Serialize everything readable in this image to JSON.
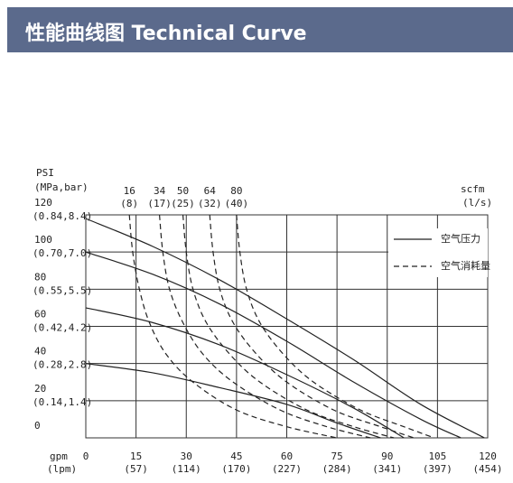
{
  "chart_data": {
    "type": "line",
    "title": "性能曲线图 Technical Curve",
    "y_label": "PSI",
    "y_label_secondary": "(MPa,bar)",
    "x_label": "gpm",
    "x_label_secondary": "(lpm)",
    "curve_label": "scfm",
    "curve_label_secondary": "(l/s)",
    "xlim": [
      0,
      120
    ],
    "ylim": [
      0,
      120
    ],
    "xticks": [
      0,
      15,
      30,
      45,
      60,
      75,
      90,
      105,
      120
    ],
    "xtick_secondary_labels": [
      null,
      "(57)",
      "(114)",
      "(170)",
      "(227)",
      "(284)",
      "(341)",
      "(397)",
      "(454)"
    ],
    "yticks": [
      0,
      20,
      40,
      60,
      80,
      100,
      120
    ],
    "ytick_secondary_labels": [
      null,
      "(0.14,1.4)",
      "(0.28,2.8)",
      "(0.42,4.2)",
      "(0.55,5.5)",
      "(0.70,7.0)",
      "(0.84,8.4)"
    ],
    "grid": true,
    "legend": [
      {
        "label": "空气压力",
        "style": "solid"
      },
      {
        "label": "空气消耗量",
        "style": "dashed"
      }
    ],
    "color": "#222222",
    "series": [
      {
        "style": "solid",
        "x": [
          0,
          20,
          40,
          60,
          80,
          100,
          119
        ],
        "values": [
          118,
          103,
          85,
          64,
          42,
          18,
          0
        ]
      },
      {
        "style": "solid",
        "x": [
          0,
          20,
          40,
          60,
          80,
          100,
          112
        ],
        "values": [
          100,
          88,
          72,
          52,
          30,
          10,
          0
        ]
      },
      {
        "style": "solid",
        "x": [
          0,
          20,
          40,
          60,
          80,
          95
        ],
        "values": [
          70,
          62,
          50,
          34,
          16,
          0
        ]
      },
      {
        "style": "solid",
        "x": [
          0,
          20,
          40,
          60,
          75,
          88
        ],
        "values": [
          40,
          35,
          27,
          18,
          8,
          0
        ]
      },
      {
        "style": "dashed",
        "name": "16",
        "sublabel": "(8)",
        "x": [
          13,
          14,
          16,
          19,
          24,
          32,
          45,
          60,
          75
        ],
        "values": [
          120,
          100,
          80,
          62,
          45,
          30,
          15,
          6,
          0
        ]
      },
      {
        "style": "dashed",
        "name": "34",
        "sublabel": "(17)",
        "x": [
          22,
          23,
          25,
          29,
          35,
          44,
          58,
          72,
          85
        ],
        "values": [
          120,
          100,
          80,
          62,
          45,
          30,
          15,
          6,
          0
        ]
      },
      {
        "style": "dashed",
        "name": "50",
        "sublabel": "(25)",
        "x": [
          29,
          30,
          32,
          36,
          43,
          52,
          66,
          80,
          92
        ],
        "values": [
          120,
          100,
          80,
          62,
          45,
          30,
          15,
          6,
          0
        ]
      },
      {
        "style": "dashed",
        "name": "64",
        "sublabel": "(32)",
        "x": [
          37,
          38,
          40,
          44,
          51,
          60,
          74,
          88,
          98
        ],
        "values": [
          120,
          100,
          80,
          62,
          45,
          30,
          15,
          6,
          0
        ]
      },
      {
        "style": "dashed",
        "name": "80",
        "sublabel": "(40)",
        "x": [
          45,
          46,
          48,
          52,
          59,
          68,
          82,
          95,
          104
        ],
        "values": [
          120,
          100,
          80,
          62,
          45,
          30,
          15,
          6,
          0
        ]
      }
    ]
  }
}
